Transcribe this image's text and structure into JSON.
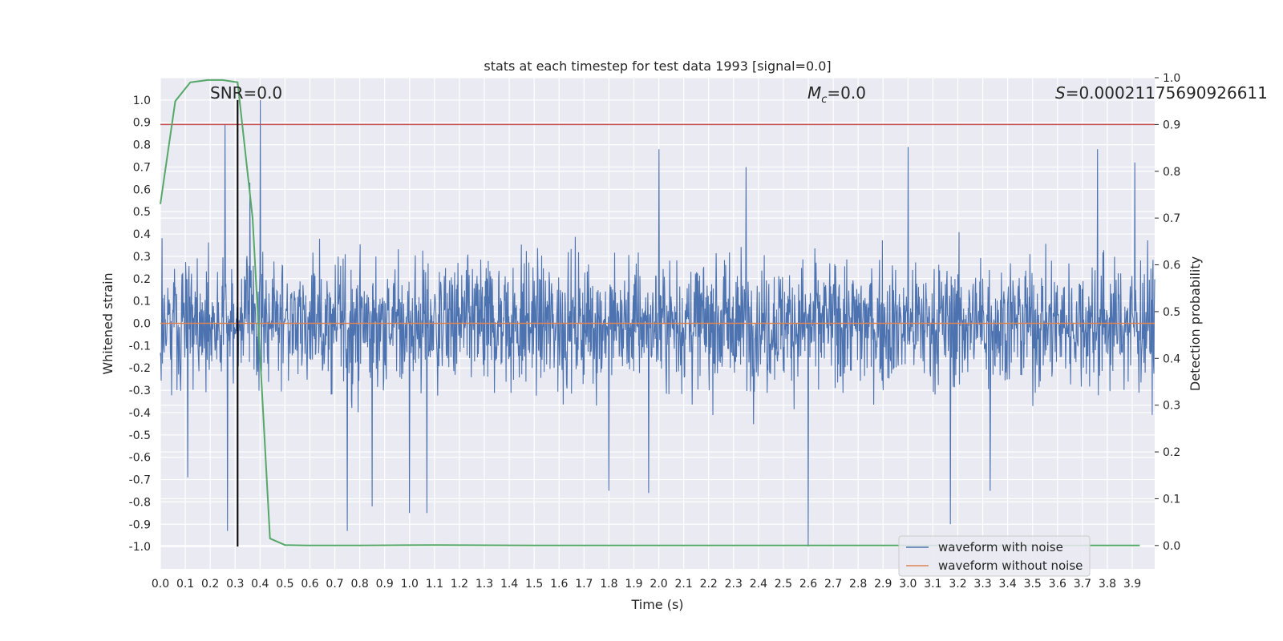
{
  "chart_data": {
    "type": "line",
    "title": "stats at each timestep for test data 1993 [signal=0.0]",
    "xlabel": "Time (s)",
    "ylabel": "Whitened strain",
    "y2label": "Detection probability",
    "xlim": [
      0.0,
      3.99
    ],
    "ylim": [
      -1.1,
      1.1
    ],
    "y2lim": [
      -0.05,
      1.0
    ],
    "x_ticks": [
      "0.0",
      "0.1",
      "0.2",
      "0.3",
      "0.4",
      "0.5",
      "0.6",
      "0.7",
      "0.8",
      "0.9",
      "1.0",
      "1.1",
      "1.2",
      "1.3",
      "1.4",
      "1.5",
      "1.6",
      "1.7",
      "1.8",
      "1.9",
      "2.0",
      "2.1",
      "2.2",
      "2.3",
      "2.4",
      "2.5",
      "2.6",
      "2.7",
      "2.8",
      "2.9",
      "3.0",
      "3.1",
      "3.2",
      "3.3",
      "3.4",
      "3.5",
      "3.6",
      "3.7",
      "3.8",
      "3.9"
    ],
    "y_ticks": [
      "1.0",
      "0.9",
      "0.8",
      "0.7",
      "0.6",
      "0.5",
      "0.4",
      "0.3",
      "0.2",
      "0.1",
      "0.0",
      "-0.1",
      "-0.2",
      "-0.3",
      "-0.4",
      "-0.5",
      "-0.6",
      "-0.7",
      "-0.8",
      "-0.9",
      "-1.0"
    ],
    "y2_ticks": [
      "1.0",
      "0.9",
      "0.8",
      "0.7",
      "0.6",
      "0.5",
      "0.4",
      "0.3",
      "0.2",
      "0.1",
      "0.0"
    ],
    "grid": true,
    "legend_placement": "lower-right",
    "annotations": {
      "snr": "SNR=0.0",
      "mc": "M",
      "mc_sub": "c",
      "mc_value": "=0.0",
      "s": "S",
      "s_value": "=0.00021175690926611"
    },
    "series": [
      {
        "name": "waveform with noise",
        "color": "#4c72b0",
        "style": "dense-noise",
        "x_range": [
          0.0,
          3.99
        ],
        "spikes": [
          {
            "x": 0.26,
            "y": 0.89
          },
          {
            "x": 0.4,
            "y": 1.0
          },
          {
            "x": 0.27,
            "y": -0.93
          },
          {
            "x": 0.75,
            "y": -0.93
          },
          {
            "x": 2.6,
            "y": -1.0
          },
          {
            "x": 3.17,
            "y": -0.9
          },
          {
            "x": 3.0,
            "y": 0.79
          },
          {
            "x": 2.0,
            "y": 0.78
          },
          {
            "x": 3.76,
            "y": 0.78
          },
          {
            "x": 1.8,
            "y": -0.75
          },
          {
            "x": 1.96,
            "y": -0.76
          },
          {
            "x": 3.33,
            "y": -0.75
          },
          {
            "x": 0.11,
            "y": -0.69
          },
          {
            "x": 3.91,
            "y": 0.72
          },
          {
            "x": 2.35,
            "y": 0.7
          },
          {
            "x": 1.0,
            "y": -0.85
          },
          {
            "x": 1.07,
            "y": -0.85
          },
          {
            "x": 0.85,
            "y": -0.82
          },
          {
            "x": 0.36,
            "y": 0.63
          }
        ]
      },
      {
        "name": "waveform without noise",
        "color": "#dd8452",
        "x": [
          0.0,
          3.99
        ],
        "y": [
          0.0,
          0.0
        ]
      },
      {
        "name": "detection probability",
        "axis": "right",
        "color": "#55a868",
        "x": [
          0.0,
          0.06,
          0.12,
          0.19,
          0.25,
          0.31,
          0.37,
          0.44,
          0.5,
          0.6,
          0.8,
          1.1,
          1.5,
          2.0,
          2.5,
          3.0,
          3.5,
          3.93
        ],
        "y": [
          0.73,
          0.95,
          0.99,
          0.995,
          0.995,
          0.99,
          0.7,
          0.015,
          0.001,
          0.0,
          0.0,
          0.001,
          0.0,
          0.0,
          0.0,
          0.0,
          0.0,
          0.0
        ]
      }
    ],
    "threshold": {
      "axis": "right",
      "y": 0.9,
      "color": "#c44e52"
    },
    "marker_line": {
      "x": 0.31,
      "y_range": [
        -1.0,
        1.0
      ],
      "color": "#000000"
    }
  }
}
